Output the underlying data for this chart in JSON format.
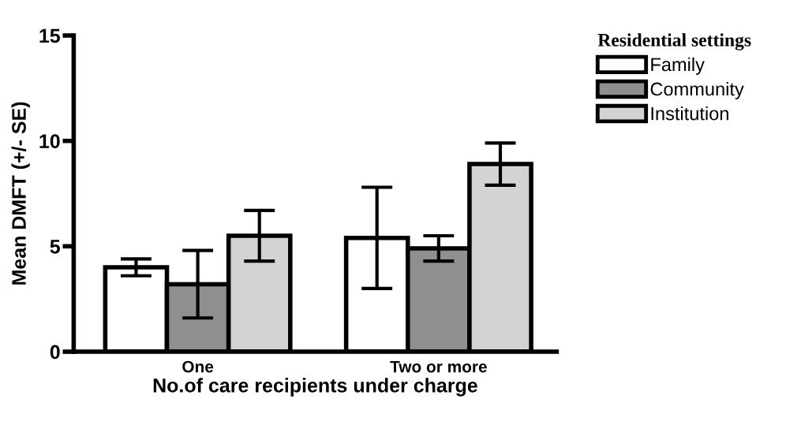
{
  "chart_data": {
    "type": "bar",
    "xlabel": "No.of care recipients under charge",
    "ylabel": "Mean DMFT (+/- SE)",
    "legend_title": "Residential settings",
    "categories": [
      "One",
      "Two or more"
    ],
    "series": [
      {
        "name": "Family",
        "color": "#ffffff",
        "values": [
          4.0,
          5.4
        ],
        "errors": [
          0.4,
          2.4
        ]
      },
      {
        "name": "Community",
        "color": "#8f8f8f",
        "values": [
          3.2,
          4.9
        ],
        "errors": [
          1.6,
          0.6
        ]
      },
      {
        "name": "Institution",
        "color": "#d3d3d3",
        "values": [
          5.5,
          8.9
        ],
        "errors": [
          1.2,
          1.0
        ]
      }
    ],
    "ylim": [
      0,
      15
    ],
    "yticks": [
      0,
      5,
      10,
      15
    ],
    "grid": false,
    "legend": "top right"
  }
}
